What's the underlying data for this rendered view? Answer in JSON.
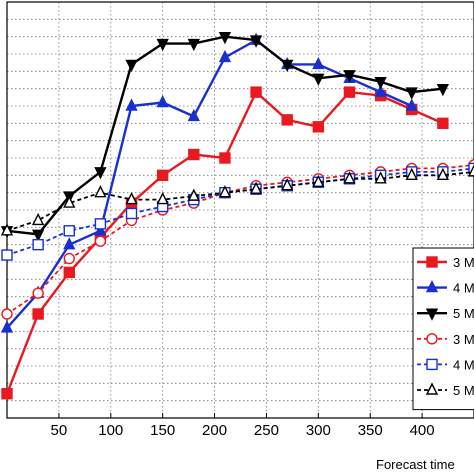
{
  "chart_data": {
    "type": "line",
    "xlabel": "Forecast time",
    "ylabel": "",
    "title": "",
    "xlim": [
      0,
      450
    ],
    "x_ticks": [
      50,
      100,
      150,
      200,
      250,
      300,
      350,
      400
    ],
    "x_tick_labels": [
      "50",
      "100",
      "150",
      "200",
      "250",
      "300",
      "350",
      "400"
    ],
    "grid": true,
    "legend_position": "bottom-right",
    "x": [
      0,
      30,
      60,
      90,
      120,
      150,
      180,
      210,
      240,
      270,
      300,
      330,
      360,
      390,
      420,
      450
    ],
    "series": [
      {
        "name": "3 M",
        "color": "#e8191f",
        "linestyle": "solid",
        "marker": "square-filled",
        "values": [
          0.07,
          0.3,
          0.42,
          0.52,
          0.62,
          0.7,
          0.76,
          0.75,
          0.94,
          0.86,
          0.84,
          0.94,
          0.93,
          0.89,
          0.85,
          null
        ]
      },
      {
        "name": "4 M",
        "color": "#1930d0",
        "linestyle": "solid",
        "marker": "triangle-up-filled",
        "values": [
          0.26,
          0.36,
          0.5,
          0.54,
          0.9,
          0.91,
          0.87,
          1.04,
          1.09,
          1.02,
          1.02,
          0.98,
          0.94,
          0.9,
          null,
          null
        ]
      },
      {
        "name": "5 M",
        "color": "#000000",
        "linestyle": "solid",
        "marker": "triangle-down-filled",
        "values": [
          0.54,
          0.53,
          0.64,
          0.71,
          1.02,
          1.08,
          1.08,
          1.1,
          1.09,
          1.02,
          0.98,
          0.99,
          0.97,
          0.94,
          0.95,
          null
        ]
      },
      {
        "name": "3 M",
        "color": "#e8191f",
        "linestyle": "dashed",
        "marker": "circle-open",
        "values": [
          0.3,
          0.36,
          0.46,
          0.51,
          0.57,
          0.6,
          0.62,
          0.65,
          0.67,
          0.68,
          0.69,
          0.7,
          0.71,
          0.72,
          0.72,
          0.73
        ]
      },
      {
        "name": "4 M",
        "color": "#1930d0",
        "linestyle": "dashed",
        "marker": "square-open",
        "values": [
          0.47,
          0.5,
          0.54,
          0.56,
          0.59,
          0.61,
          0.63,
          0.65,
          0.66,
          0.67,
          0.68,
          0.69,
          0.7,
          0.71,
          0.71,
          0.72
        ]
      },
      {
        "name": "5 M",
        "color": "#000000",
        "linestyle": "dashed",
        "marker": "triangle-up-open",
        "values": [
          0.54,
          0.57,
          0.62,
          0.65,
          0.63,
          0.63,
          0.64,
          0.65,
          0.66,
          0.67,
          0.68,
          0.69,
          0.69,
          0.7,
          0.7,
          0.71
        ]
      }
    ]
  }
}
